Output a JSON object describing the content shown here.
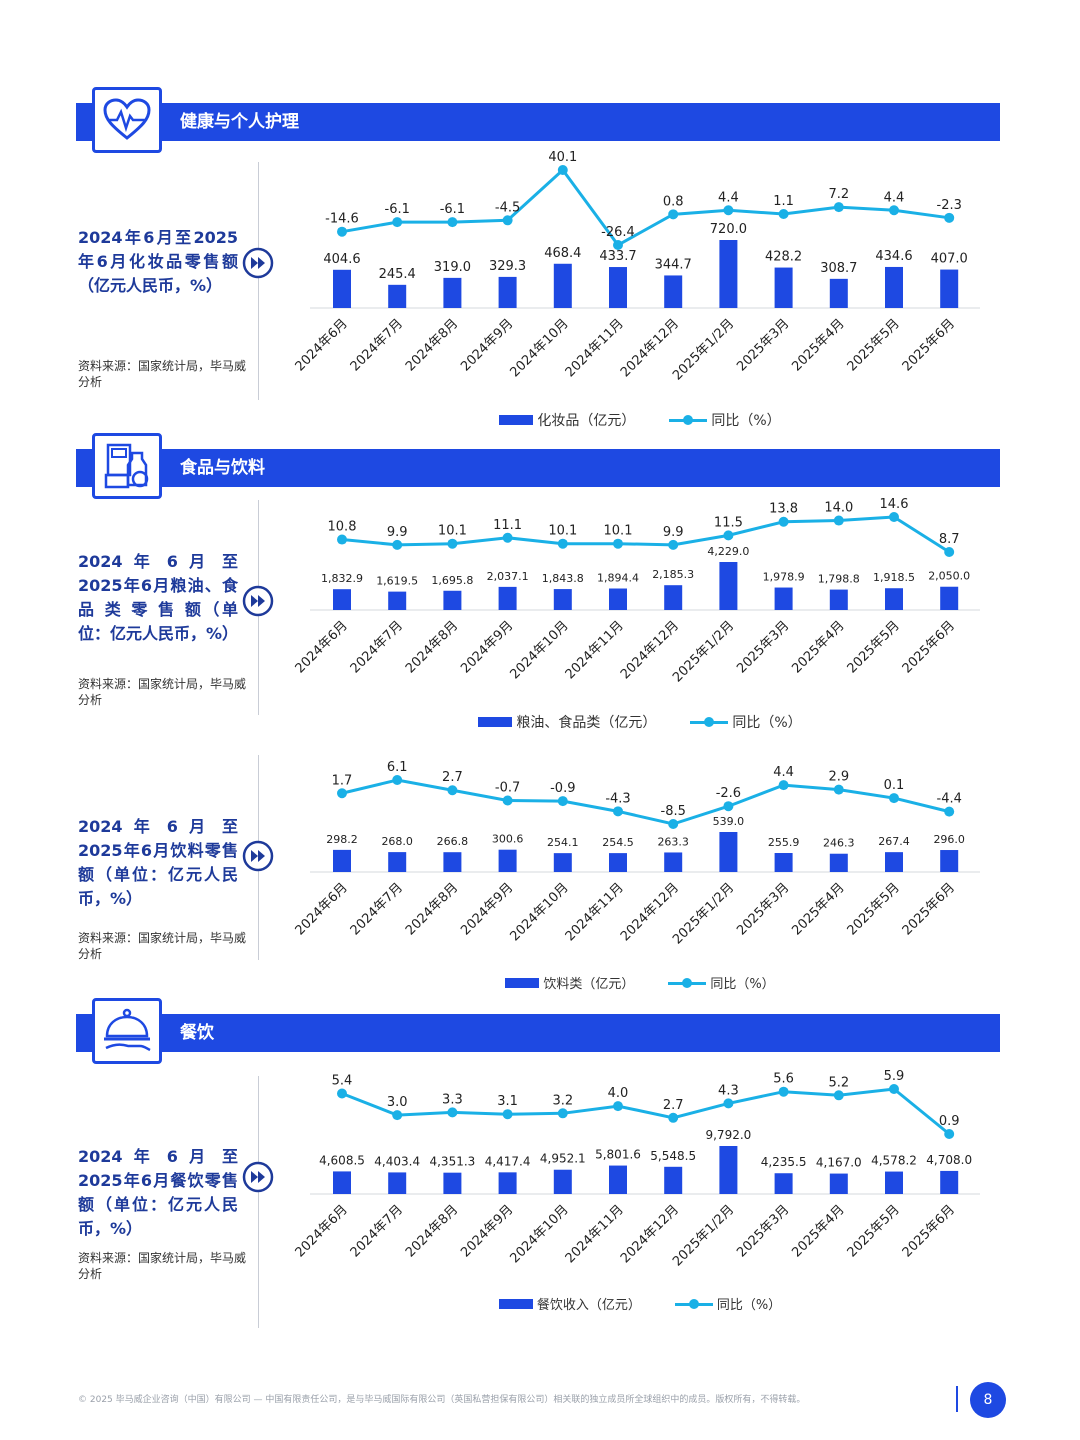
{
  "sections": {
    "health": {
      "title": "健康与个人护理"
    },
    "food": {
      "title": "食品与饮料"
    },
    "dining": {
      "title": "餐饮"
    }
  },
  "charts_text": {
    "c1": {
      "left_title": "2024年6月至2025年6月化妆品零售额（亿元人民币，%）",
      "source": "资料来源：国家统计局，毕马威分析"
    },
    "c2": {
      "left_title": "2024 年 6 月 至 2025年6月粮油、食 品 类 零 售 额（单位：亿元人民币，%）",
      "source": "资料来源：国家统计局，毕马威分析"
    },
    "c3": {
      "left_title": "2024 年 6 月 至 2025年6月饮料零售额（单位：亿元人民币，%）",
      "source": "资料来源：国家统计局，毕马威分析"
    },
    "c4": {
      "left_title": "2024 年 6 月 至 2025年6月餐饮零售额（单位：亿元人民币，%）",
      "source": "资料来源：国家统计局，毕马威分析"
    }
  },
  "chart_data": [
    {
      "type": "bar",
      "categories": [
        "2024年6月",
        "2024年7月",
        "2024年8月",
        "2024年9月",
        "2024年10月",
        "2024年11月",
        "2024年12月",
        "2025年1/2月",
        "2025年3月",
        "2025年4月",
        "2025年5月",
        "2025年6月"
      ],
      "series": [
        {
          "name": "化妆品（亿元）",
          "type": "bar",
          "values": [
            404.6,
            245.4,
            319.0,
            329.3,
            468.4,
            433.7,
            344.7,
            720.0,
            428.2,
            308.7,
            434.6,
            407.0
          ],
          "labels": [
            "404.6",
            "245.4",
            "319.0",
            "329.3",
            "468.4",
            "433.7",
            "344.7",
            "720.0",
            "428.2",
            "308.7",
            "434.6",
            "407.0"
          ]
        },
        {
          "name": "同比（%）",
          "type": "line",
          "values": [
            -14.6,
            -6.1,
            -6.1,
            -4.5,
            40.1,
            -26.4,
            0.8,
            4.4,
            1.1,
            7.2,
            4.4,
            -2.3
          ],
          "labels": [
            "-14.6",
            "-6.1",
            "-6.1",
            "-4.5",
            "40.1",
            "-26.4",
            "0.8",
            "4.4",
            "1.1",
            "7.2",
            "4.4",
            "-2.3"
          ]
        }
      ],
      "legend": "bottom-center",
      "colors": {
        "bar": "#1e49e2",
        "line": "#1ab0e6"
      }
    },
    {
      "type": "bar",
      "categories": [
        "2024年6月",
        "2024年7月",
        "2024年8月",
        "2024年9月",
        "2024年10月",
        "2024年11月",
        "2024年12月",
        "2025年1/2月",
        "2025年3月",
        "2025年4月",
        "2025年5月",
        "2025年6月"
      ],
      "series": [
        {
          "name": "粮油、食品类（亿元）",
          "type": "bar",
          "values": [
            1832.9,
            1619.5,
            1695.8,
            2037.1,
            1843.8,
            1894.4,
            2185.3,
            4229.0,
            1978.9,
            1798.8,
            1918.5,
            2050.0
          ],
          "labels": [
            "1,832.9",
            "1,619.5",
            "1,695.8",
            "2,037.1",
            "1,843.8",
            "1,894.4",
            "2,185.3",
            "4,229.0",
            "1,978.9",
            "1,798.8",
            "1,918.5",
            "2,050.0"
          ]
        },
        {
          "name": "同比（%）",
          "type": "line",
          "values": [
            10.8,
            9.9,
            10.1,
            11.1,
            10.1,
            10.1,
            9.9,
            11.5,
            13.8,
            14.0,
            14.6,
            8.7
          ],
          "labels": [
            "10.8",
            "9.9",
            "10.1",
            "11.1",
            "10.1",
            "10.1",
            "9.9",
            "11.5",
            "13.8",
            "14.0",
            "14.6",
            "8.7"
          ]
        }
      ],
      "legend": "bottom-center",
      "colors": {
        "bar": "#1e49e2",
        "line": "#1ab0e6"
      }
    },
    {
      "type": "bar",
      "categories": [
        "2024年6月",
        "2024年7月",
        "2024年8月",
        "2024年9月",
        "2024年10月",
        "2024年11月",
        "2024年12月",
        "2025年1/2月",
        "2025年3月",
        "2025年4月",
        "2025年5月",
        "2025年6月"
      ],
      "series": [
        {
          "name": "饮料类（亿元）",
          "type": "bar",
          "values": [
            298.2,
            268.0,
            266.8,
            300.6,
            254.1,
            254.5,
            263.3,
            539.0,
            255.9,
            246.3,
            267.4,
            296.0
          ],
          "labels": [
            "298.2",
            "268.0",
            "266.8",
            "300.6",
            "254.1",
            "254.5",
            "263.3",
            "539.0",
            "255.9",
            "246.3",
            "267.4",
            "296.0"
          ]
        },
        {
          "name": "同比（%）",
          "type": "line",
          "values": [
            1.7,
            6.1,
            2.7,
            -0.7,
            -0.9,
            -4.3,
            -8.5,
            -2.6,
            4.4,
            2.9,
            0.1,
            -4.4
          ],
          "labels": [
            "1.7",
            "6.1",
            "2.7",
            "-0.7",
            "-0.9",
            "-4.3",
            "-8.5",
            "-2.6",
            "4.4",
            "2.9",
            "0.1",
            "-4.4"
          ]
        }
      ],
      "legend": "bottom-center",
      "colors": {
        "bar": "#1e49e2",
        "line": "#1ab0e6"
      }
    },
    {
      "type": "bar",
      "categories": [
        "2024年6月",
        "2024年7月",
        "2024年8月",
        "2024年9月",
        "2024年10月",
        "2024年11月",
        "2024年12月",
        "2025年1/2月",
        "2025年3月",
        "2025年4月",
        "2025年5月",
        "2025年6月"
      ],
      "series": [
        {
          "name": "餐饮收入（亿元）",
          "type": "bar",
          "values": [
            4608.5,
            4403.4,
            4351.3,
            4417.4,
            4952.1,
            5801.6,
            5548.5,
            9792.0,
            4235.5,
            4167.0,
            4578.2,
            4708.0
          ],
          "labels": [
            "4,608.5",
            "4,403.4",
            "4,351.3",
            "4,417.4",
            "4,952.1",
            "5,801.6",
            "5,548.5",
            "9,792.0",
            "4,235.5",
            "4,167.0",
            "4,578.2",
            "4,708.0"
          ]
        },
        {
          "name": "同比（%）",
          "type": "line",
          "values": [
            5.4,
            3.0,
            3.3,
            3.1,
            3.2,
            4.0,
            2.7,
            4.3,
            5.6,
            5.2,
            5.9,
            0.9
          ],
          "labels": [
            "5.4",
            "3.0",
            "3.3",
            "3.1",
            "3.2",
            "4.0",
            "2.7",
            "4.3",
            "5.6",
            "5.2",
            "5.9",
            "0.9"
          ]
        }
      ],
      "legend": "bottom-center",
      "colors": {
        "bar": "#1e49e2",
        "line": "#1ab0e6"
      }
    }
  ],
  "footer": {
    "text": "© 2025 毕马威企业咨询（中国）有限公司 — 中国有限责任公司，是与毕马威国际有限公司（英国私营担保有限公司）相关联的独立成员所全球组织中的成员。版权所有，不得转载。",
    "page": "8"
  }
}
